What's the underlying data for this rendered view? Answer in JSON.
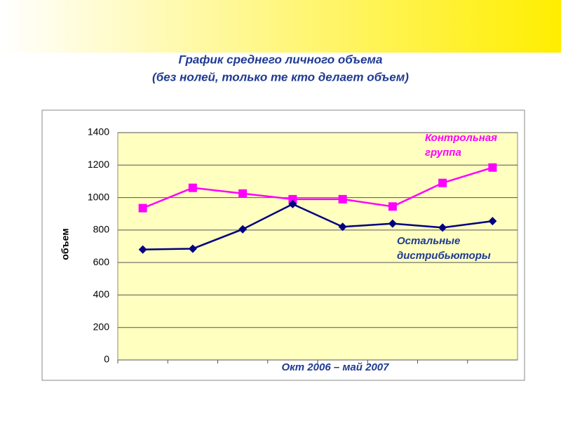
{
  "chart_data": {
    "type": "line",
    "title": "График среднего личного объема",
    "subtitle": "(без нолей, только те кто делает объем)",
    "y_label": "объем",
    "x_label": "Окт 2006 – май 2007",
    "categories": [
      null,
      null,
      null,
      null,
      null,
      null,
      null,
      null
    ],
    "series": [
      {
        "name": "Контрольная группа",
        "color": "#ff00ff",
        "marker": "square",
        "values": [
          935,
          1060,
          1025,
          990,
          990,
          945,
          1090,
          1185
        ]
      },
      {
        "name": "Остальные дистрибьюторы",
        "color": "#000080",
        "marker": "diamond",
        "values": [
          680,
          685,
          805,
          960,
          820,
          840,
          815,
          855
        ]
      }
    ],
    "ylim": [
      0,
      1400
    ],
    "yticks": [
      0,
      200,
      400,
      600,
      800,
      1000,
      1200,
      1400
    ],
    "grid": true
  }
}
